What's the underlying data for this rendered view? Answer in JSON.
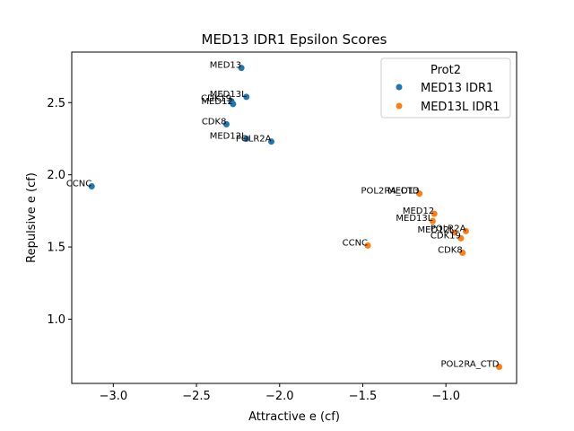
{
  "chart_data": {
    "type": "scatter",
    "title": "MED13 IDR1 Epsilon Scores",
    "xlabel": "Attractive e (cf)",
    "ylabel": "Repulsive e (cf)",
    "xlim": [
      -3.25,
      -0.575
    ],
    "ylim": [
      0.555,
      2.85
    ],
    "xticks": [
      -3.0,
      -2.5,
      -2.0,
      -1.5,
      -1.0
    ],
    "xtick_labels": [
      "−3.0",
      "−2.5",
      "−2.0",
      "−1.5",
      "−1.0"
    ],
    "yticks": [
      1.0,
      1.5,
      2.0,
      2.5
    ],
    "ytick_labels": [
      "1.0",
      "1.5",
      "2.0",
      "2.5"
    ],
    "grid": false,
    "legend": {
      "title": "Prot2",
      "placement": "upper right"
    },
    "series": [
      {
        "name": "MED13 IDR1",
        "color": "#1f77b4",
        "points": [
          {
            "label": "MED13",
            "x": -2.23,
            "y": 2.74
          },
          {
            "label": "MED13L",
            "x": -2.2,
            "y": 2.54
          },
          {
            "label": "CDK19",
            "x": -2.29,
            "y": 2.51
          },
          {
            "label": "MED12",
            "x": -2.28,
            "y": 2.49
          },
          {
            "label": "CDK8",
            "x": -2.32,
            "y": 2.35
          },
          {
            "label": "MED12L",
            "x": -2.2,
            "y": 2.25
          },
          {
            "label": "POLR2A",
            "x": -2.05,
            "y": 2.23
          },
          {
            "label": "CCNC",
            "x": -3.13,
            "y": 1.92
          }
        ]
      },
      {
        "name": "MED13L IDR1",
        "color": "#ff7f0e",
        "points": [
          {
            "label": "POL2RA_CTD",
            "x": -1.16,
            "y": 1.87
          },
          {
            "label": "MED13",
            "x": -1.16,
            "y": 1.87
          },
          {
            "label": "MED12",
            "x": -1.07,
            "y": 1.73
          },
          {
            "label": "MED13L",
            "x": -1.08,
            "y": 1.68
          },
          {
            "label": "POLR2A",
            "x": -0.88,
            "y": 1.61
          },
          {
            "label": "MED12L",
            "x": -0.95,
            "y": 1.6
          },
          {
            "label": "CDK19",
            "x": -0.91,
            "y": 1.56
          },
          {
            "label": "CCNC",
            "x": -1.47,
            "y": 1.51
          },
          {
            "label": "CDK8",
            "x": -0.9,
            "y": 1.46
          },
          {
            "label": "POL2RA_CTD",
            "x": -0.68,
            "y": 0.67
          }
        ]
      }
    ]
  }
}
